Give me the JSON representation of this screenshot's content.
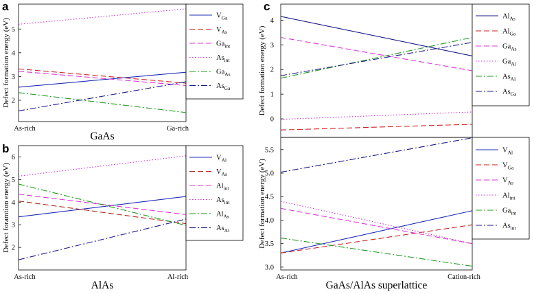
{
  "chart_data": [
    {
      "id": "a",
      "type": "line",
      "letter": "a",
      "ylabel": "Defect formation energy (eV)",
      "xtitle": "GaAs",
      "x_categories": [
        "As-rich",
        "Ga-rich"
      ],
      "ylim": [
        1.1,
        6.05
      ],
      "yticks": [
        2,
        3,
        4,
        5
      ],
      "ytick_labels": [
        "2",
        "3",
        "4",
        "5"
      ],
      "legend_position": "top-right",
      "series": [
        {
          "base": "V",
          "sub": "Ga",
          "color": "#1f2bb8",
          "dash": "solid",
          "values": [
            2.55,
            3.18
          ]
        },
        {
          "base": "V",
          "sub": "As",
          "color": "#cc2222",
          "dash": "dashed",
          "values": [
            3.32,
            2.72
          ]
        },
        {
          "base": "Ga",
          "sub": "int",
          "color": "#dd33dd",
          "dash": "dashed",
          "values": [
            3.22,
            2.62
          ]
        },
        {
          "base": "As",
          "sub": "int",
          "color": "#cc33cc",
          "dash": "dotted",
          "values": [
            5.2,
            5.85
          ]
        },
        {
          "base": "Ga",
          "sub": "As",
          "color": "#229922",
          "dash": "dashdot",
          "values": [
            2.32,
            1.48
          ]
        },
        {
          "base": "As",
          "sub": "Ga",
          "color": "#1c1c8a",
          "dash": "dashdot",
          "values": [
            1.55,
            2.78
          ]
        }
      ]
    },
    {
      "id": "b",
      "type": "line",
      "letter": "b",
      "ylabel": "Defect foramtion energy (eV)",
      "xtitle": "AlAs",
      "x_categories": [
        "As-rich",
        "Al-rich"
      ],
      "ylim": [
        1.0,
        6.5
      ],
      "yticks": [
        2,
        3,
        4,
        5,
        6
      ],
      "ytick_labels": [
        "2",
        "3",
        "4",
        "5",
        "6"
      ],
      "legend_position": "top-right",
      "series": [
        {
          "base": "V",
          "sub": "Al",
          "color": "#1f2bb8",
          "dash": "solid",
          "values": [
            3.35,
            4.25
          ]
        },
        {
          "base": "V",
          "sub": "As",
          "color": "#aa2a1a",
          "dash": "dashed",
          "values": [
            4.05,
            3.05
          ]
        },
        {
          "base": "Al",
          "sub": "int",
          "color": "#dd33dd",
          "dash": "dashed",
          "values": [
            4.35,
            3.45
          ]
        },
        {
          "base": "As",
          "sub": "int",
          "color": "#cc33cc",
          "dash": "dotted",
          "values": [
            5.15,
            6.05
          ]
        },
        {
          "base": "Al",
          "sub": "As",
          "color": "#229922",
          "dash": "dashdot",
          "values": [
            4.8,
            2.97
          ]
        },
        {
          "base": "As",
          "sub": "Al",
          "color": "#1c1c8a",
          "dash": "dashdot",
          "values": [
            1.45,
            3.25
          ]
        }
      ]
    },
    {
      "id": "c-top",
      "type": "line",
      "letter": "c",
      "ylabel": "Defect formation energy (eV)",
      "xtitle": "",
      "x_categories": [],
      "ylim": [
        -0.75,
        4.65
      ],
      "yticks": [
        0,
        1,
        2,
        3,
        4
      ],
      "ytick_labels": [
        "0",
        "1",
        "2",
        "3",
        "4"
      ],
      "legend_position": "top-right",
      "series": [
        {
          "base": "Al",
          "sub": "As",
          "color": "#1c1c8a",
          "dash": "solid",
          "values": [
            4.15,
            2.55
          ]
        },
        {
          "base": "Al",
          "sub": "Ga",
          "color": "#cc2222",
          "dash": "dashed",
          "values": [
            -0.45,
            -0.22
          ]
        },
        {
          "base": "Ga",
          "sub": "As",
          "color": "#dd33dd",
          "dash": "dashed",
          "values": [
            3.3,
            1.95
          ]
        },
        {
          "base": "Ga",
          "sub": "Al",
          "color": "#cc33cc",
          "dash": "dotted",
          "values": [
            -0.02,
            0.28
          ]
        },
        {
          "base": "As",
          "sub": "Al",
          "color": "#229922",
          "dash": "dashdot",
          "values": [
            1.65,
            3.3
          ]
        },
        {
          "base": "As",
          "sub": "Ga",
          "color": "#1c1c8a",
          "dash": "dashdot",
          "values": [
            1.75,
            3.1
          ]
        }
      ]
    },
    {
      "id": "c-bottom",
      "type": "line",
      "letter": "",
      "ylabel": "Defect formation energy (eV)",
      "xtitle": "GaAs/AlAs superlattice",
      "x_categories": [
        "As-rich",
        "Cation-rich"
      ],
      "ylim": [
        2.94,
        5.76
      ],
      "yticks": [
        3.0,
        3.5,
        4.0,
        4.5,
        5.0,
        5.5
      ],
      "ytick_labels": [
        "3.0",
        "3.5",
        "4.0",
        "4.5",
        "5.0",
        "5.5"
      ],
      "legend_position": "top-right",
      "series": [
        {
          "base": "V",
          "sub": "Al",
          "color": "#1f2bb8",
          "dash": "solid",
          "values": [
            3.3,
            4.2
          ]
        },
        {
          "base": "V",
          "sub": "Ga",
          "color": "#cc2222",
          "dash": "dashed",
          "values": [
            3.3,
            3.9
          ]
        },
        {
          "base": "V",
          "sub": "As",
          "color": "#dd33dd",
          "dash": "dashed",
          "values": [
            4.25,
            3.5
          ]
        },
        {
          "base": "Al",
          "sub": "int",
          "color": "#cc33cc",
          "dash": "dotted",
          "values": [
            4.4,
            3.5
          ]
        },
        {
          "base": "Ga",
          "sub": "int",
          "color": "#229922",
          "dash": "dashdot",
          "values": [
            3.62,
            3.02
          ]
        },
        {
          "base": "As",
          "sub": "int",
          "color": "#1c1c8a",
          "dash": "dashdot",
          "values": [
            5.02,
            5.75
          ]
        }
      ]
    }
  ]
}
